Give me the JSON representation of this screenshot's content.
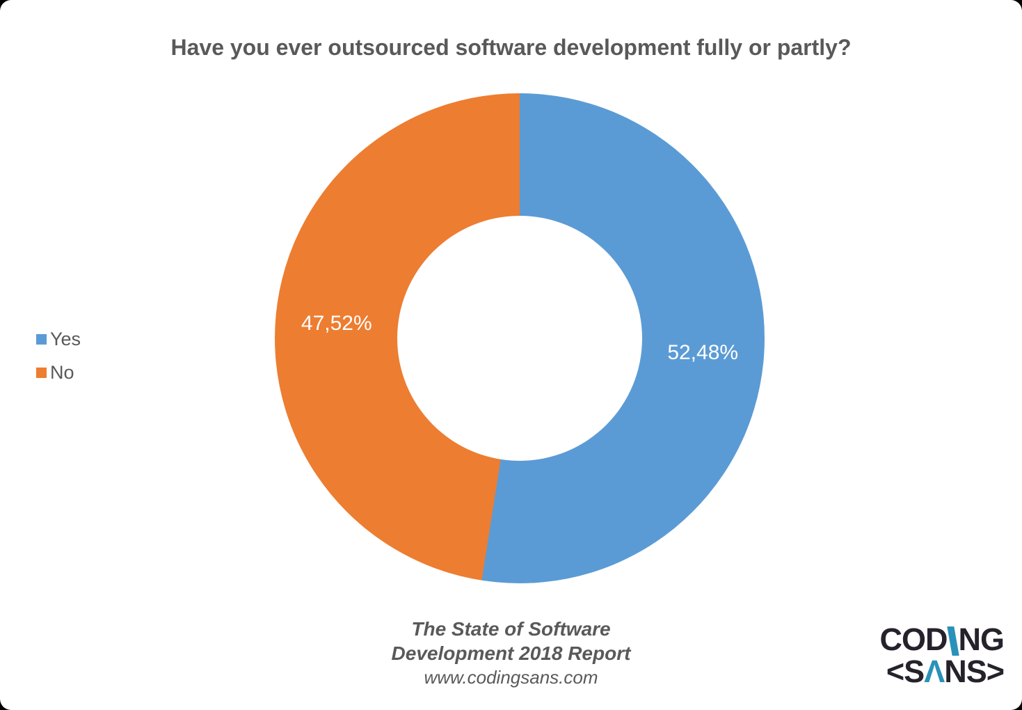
{
  "title": "Have you ever outsourced software development fully or partly?",
  "chart_data": {
    "type": "pie",
    "subtype": "donut",
    "title": "Have you ever outsourced software development fully or partly?",
    "categories": [
      "Yes",
      "No"
    ],
    "values": [
      52.48,
      47.52
    ],
    "labels": [
      "52,48%",
      "47,52%"
    ],
    "colors": [
      "#5B9BD5",
      "#ED7D31"
    ],
    "start_angle_deg": 0,
    "direction": "clockwise",
    "hole_ratio": 0.5,
    "legend_position": "left",
    "label_color": "#ffffff"
  },
  "legend": {
    "items": [
      {
        "label": "Yes",
        "color": "#5B9BD5"
      },
      {
        "label": "No",
        "color": "#ED7D31"
      }
    ]
  },
  "footer": {
    "line1": "The State of Software",
    "line2": "Development 2018 Report",
    "line3": "www.codingsans.com"
  },
  "logo": {
    "line1_pre": "COD",
    "line1_post": "NG",
    "line2_pre": "<S",
    "line2_lambda": "Λ",
    "line2_post": "NS>",
    "dark_color": "#26222B",
    "accent_color": "#2A91B9"
  },
  "colors": {
    "title_text": "#595959",
    "legend_text": "#595959",
    "footer_text": "#595959",
    "background": "#ffffff",
    "page_background": "#000000"
  }
}
